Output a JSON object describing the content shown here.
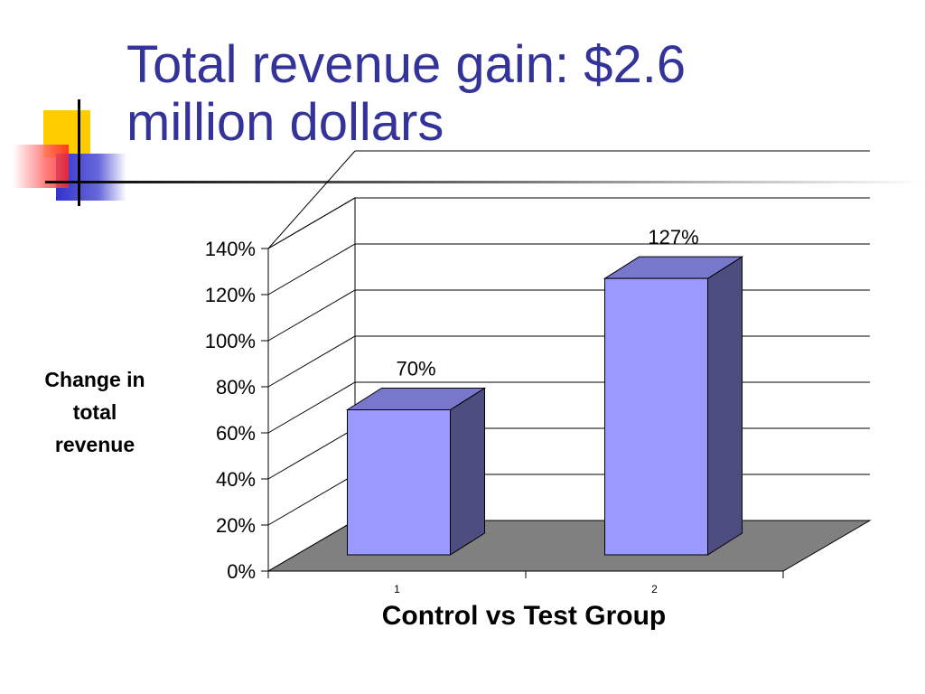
{
  "slide": {
    "title_lines": [
      "Total revenue gain: $2.6",
      "million dollars"
    ]
  },
  "colors": {
    "title": "#333399",
    "bar_front": "#9999ff",
    "bar_top": "#7777cc",
    "bar_side": "#4d4d80",
    "floor": "#808080",
    "decor_yellow": "#ffcc00",
    "decor_red": "#ff3333",
    "decor_blue": "#3333cc"
  },
  "chart_data": {
    "type": "bar",
    "style": "3d-column",
    "categories": [
      "1",
      "2"
    ],
    "values": [
      70,
      127
    ],
    "data_labels": [
      "70%",
      "127%"
    ],
    "ylim": [
      0,
      140
    ],
    "yticks": [
      "0%",
      "20%",
      "40%",
      "60%",
      "80%",
      "100%",
      "120%",
      "140%"
    ],
    "xlabel": "Control vs Test Group",
    "ylabel_lines": [
      "Change in",
      "total",
      "revenue"
    ],
    "grid": true,
    "legend": "none"
  }
}
